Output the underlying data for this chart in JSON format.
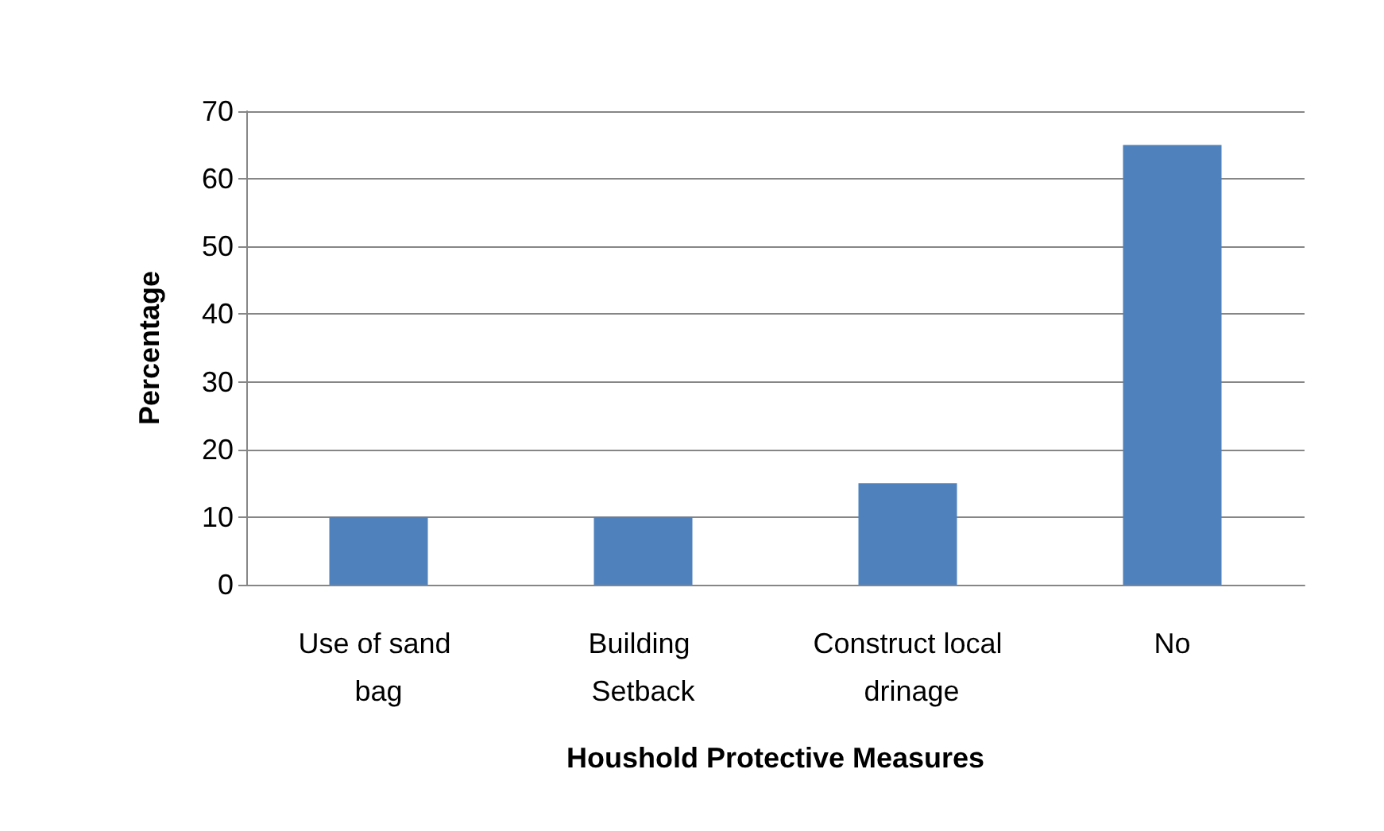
{
  "chart_data": {
    "type": "bar",
    "xlabel": "Houshold Protective Measures",
    "ylabel": "Percentage",
    "categories": [
      "Use of sand bag",
      "Building Setback",
      "Construct local drinage",
      "No"
    ],
    "values": [
      10,
      10,
      15,
      65
    ],
    "color": "#4f81bd",
    "ylim": [
      0,
      70
    ],
    "yticks": [
      0,
      10,
      20,
      30,
      40,
      50,
      60,
      70
    ],
    "grid": "y"
  }
}
